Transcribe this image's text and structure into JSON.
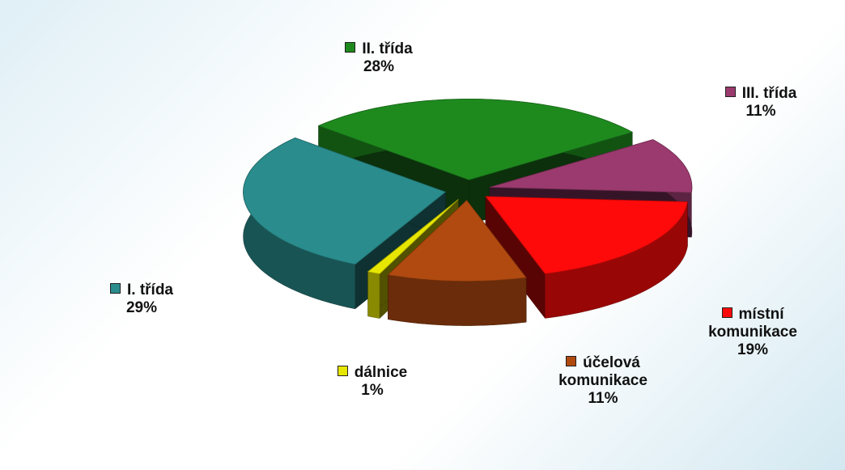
{
  "chart_data": {
    "type": "pie",
    "categories": [
      "II. třída",
      "III. třída",
      "místní komunikace",
      "účelová komunikace",
      "dálnice",
      "I. třída"
    ],
    "values": [
      28,
      11,
      19,
      11,
      1,
      29
    ],
    "value_labels": [
      "28%",
      "11%",
      "19%",
      "11%",
      "1%",
      "29%"
    ],
    "colors": [
      "#1e8a1e",
      "#9a3a6e",
      "#ff0a0a",
      "#b04a10",
      "#e6e600",
      "#2a8c8c"
    ]
  }
}
